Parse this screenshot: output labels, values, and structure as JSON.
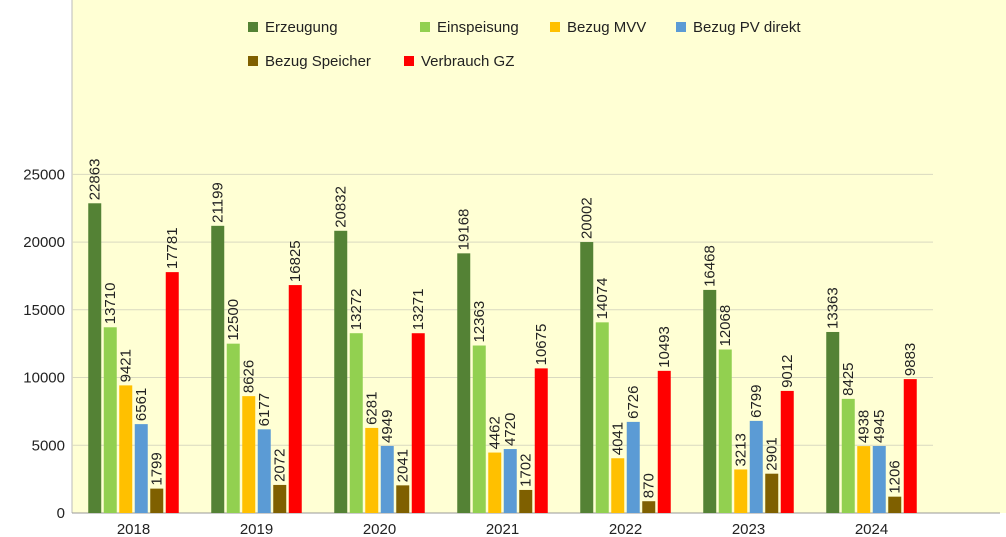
{
  "chart_data": {
    "type": "bar",
    "categories": [
      "2018",
      "2019",
      "2020",
      "2021",
      "2022",
      "2023",
      "2024"
    ],
    "series": [
      {
        "name": "Erzeugung",
        "color": "#548235",
        "values": [
          22863,
          21199,
          20832,
          19168,
          20002,
          16468,
          13363
        ]
      },
      {
        "name": "Einspeisung",
        "color": "#92d050",
        "values": [
          13710,
          12500,
          13272,
          12363,
          14074,
          12068,
          8425
        ]
      },
      {
        "name": "Bezug MVV",
        "color": "#ffc000",
        "values": [
          9421,
          8626,
          6281,
          4462,
          4041,
          3213,
          4938
        ]
      },
      {
        "name": "Bezug PV direkt",
        "color": "#5b9bd5",
        "values": [
          6561,
          6177,
          4949,
          4720,
          6726,
          6799,
          4945
        ]
      },
      {
        "name": "Bezug Speicher",
        "color": "#7f6000",
        "values": [
          1799,
          2072,
          2041,
          1702,
          870,
          2901,
          1206
        ]
      },
      {
        "name": "Verbrauch GZ",
        "color": "#ff0000",
        "values": [
          17781,
          16825,
          13271,
          10675,
          10493,
          9012,
          9883
        ]
      }
    ],
    "ylim": [
      0,
      37500
    ],
    "yticks": [
      0,
      5000,
      10000,
      15000,
      20000,
      25000
    ],
    "grid": true,
    "legend": "top"
  }
}
